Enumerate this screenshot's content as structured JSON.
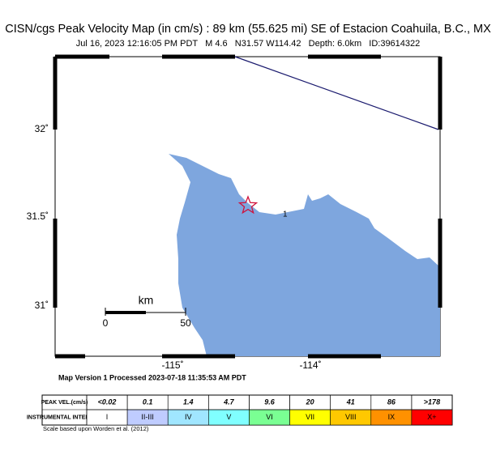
{
  "header": {
    "title": "CISN/cgs Peak Velocity Map (in cm/s) : 89 km (55.625 mi) SE of Estacion Coahuila, B.C., MX",
    "subtitle": "Jul 16, 2023 12:16:05 PM PDT   M 4.6   N31.57 W114.42   Depth: 6.0km   ID:39614322"
  },
  "map": {
    "lat_labels": [
      "32˚",
      "31.5˚",
      "31˚"
    ],
    "lon_labels": [
      "-115˚",
      "-114˚"
    ],
    "contour_label": "1",
    "scale_bar": {
      "unit": "km",
      "start": "0",
      "end": "50"
    }
  },
  "footer": {
    "version": "Map Version 1 Processed 2023-07-18 11:35:53 AM PDT",
    "note": "Scale based upon Worden et al. (2012)"
  },
  "legend": {
    "row_headers": [
      "PEAK VEL.(cm/s)",
      "INSTRUMENTAL INTENSITY"
    ],
    "velocities": [
      "<0.02",
      "0.1",
      "1.4",
      "4.7",
      "9.6",
      "20",
      "41",
      "86",
      ">178"
    ],
    "intensities": [
      "I",
      "II-III",
      "IV",
      "V",
      "VI",
      "VII",
      "VIII",
      "IX",
      "X+"
    ]
  }
}
